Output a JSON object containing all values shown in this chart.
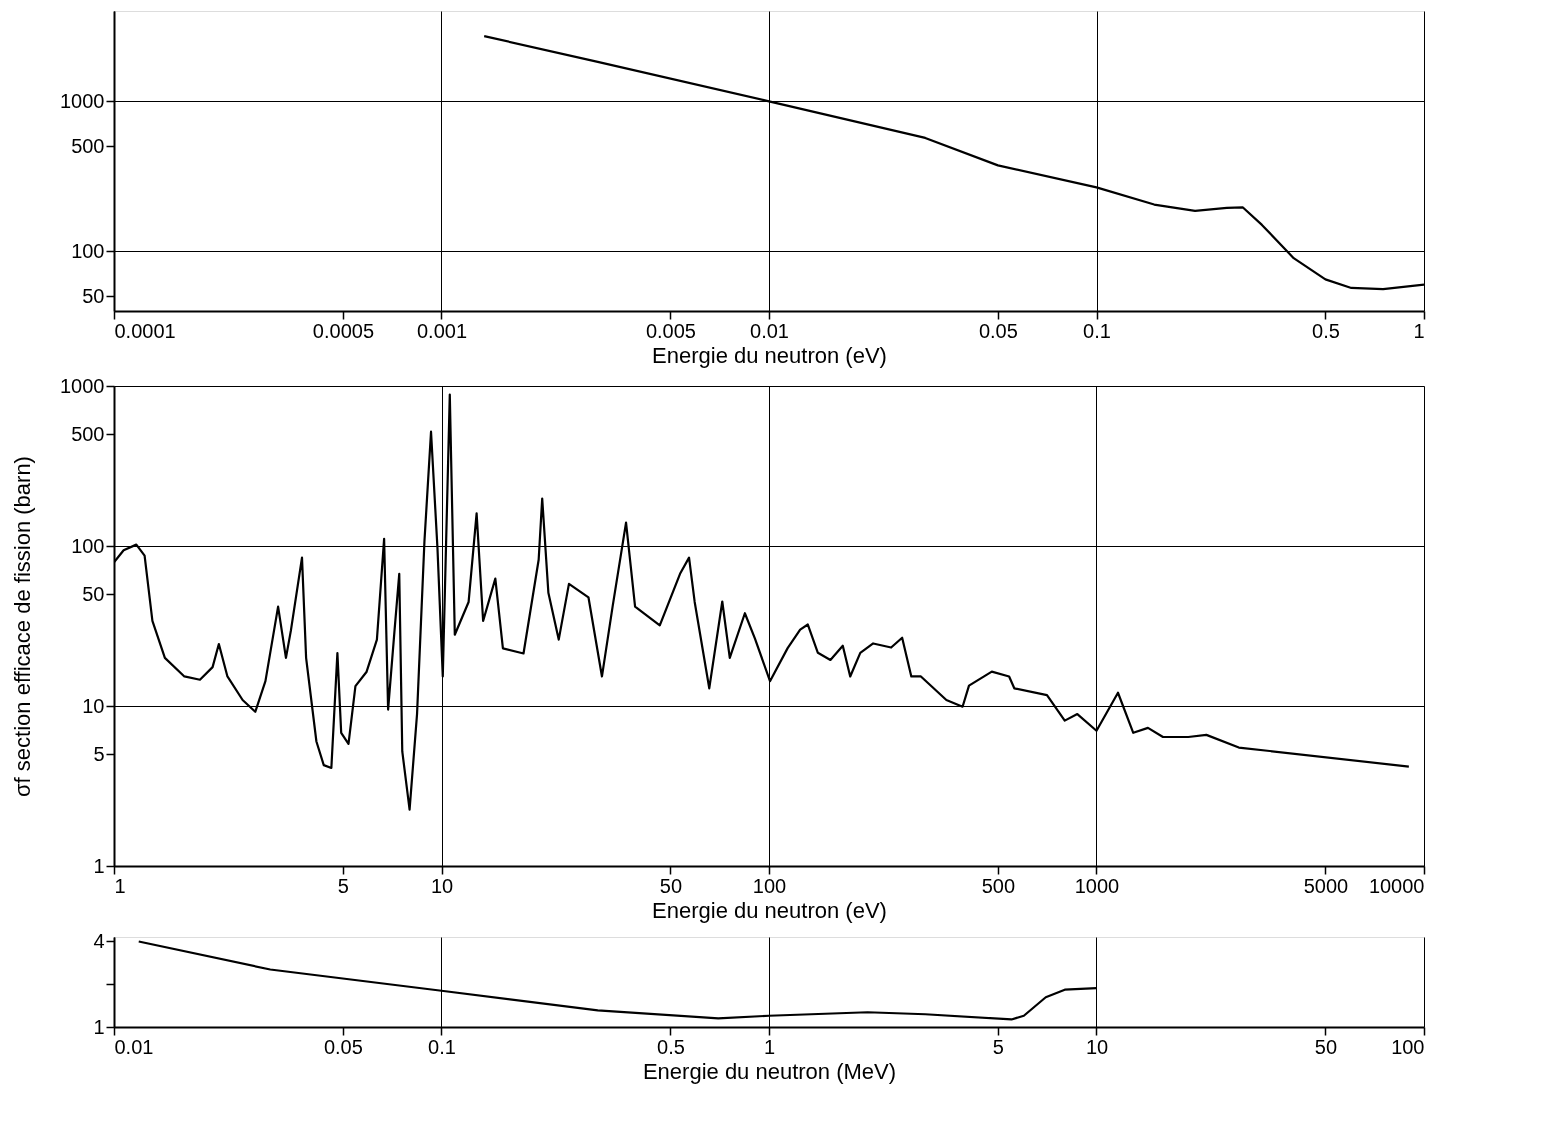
{
  "chart_data": [
    {
      "type": "line",
      "xlabel": "Energie du neutron (eV)",
      "log": "xy",
      "grid": true,
      "xlim": [
        0.0001,
        1
      ],
      "ylim": [
        40,
        4000
      ],
      "xticks": [
        0.0001,
        0.0005,
        0.001,
        0.005,
        0.01,
        0.05,
        0.1,
        0.5,
        1
      ],
      "yticks": [
        50,
        100,
        500,
        1000
      ],
      "series": [
        {
          "color": "#000000",
          "x": [
            0.00135,
            0.003,
            0.01,
            0.03,
            0.05,
            0.1,
            0.15,
            0.2,
            0.25,
            0.28,
            0.32,
            0.4,
            0.5,
            0.6,
            0.75,
            1
          ],
          "values": [
            2720,
            1830,
            1000,
            570,
            374,
            267,
            205,
            186,
            195,
            196,
            150,
            90,
            65,
            57,
            56,
            60
          ]
        }
      ]
    },
    {
      "type": "line",
      "xlabel": "Energie du neutron (eV)",
      "ylabel": "σf section efficace de fission (barn)",
      "log": "xy",
      "grid": true,
      "xlim": [
        1,
        10000
      ],
      "ylim": [
        1,
        1000
      ],
      "xticks": [
        1,
        5,
        10,
        50,
        100,
        500,
        1000,
        5000,
        10000
      ],
      "yticks": [
        1,
        5,
        10,
        50,
        100,
        500,
        1000
      ],
      "series": [
        {
          "color": "#000000",
          "x": [
            1,
            1.07,
            1.17,
            1.24,
            1.31,
            1.43,
            1.64,
            1.83,
            2.0,
            2.09,
            2.22,
            2.47,
            2.7,
            2.9,
            3.17,
            3.35,
            3.47,
            3.75,
            3.86,
            4.15,
            4.37,
            4.61,
            4.81,
            4.94,
            5.2,
            5.46,
            5.9,
            6.35,
            6.68,
            6.87,
            7.19,
            7.43,
            7.59,
            7.99,
            8.42,
            8.87,
            9.29,
            9.72,
            10.09,
            10.6,
            10.98,
            12.1,
            12.8,
            13.4,
            14.6,
            15.4,
            17.8,
            19.8,
            20.3,
            21.2,
            22.8,
            24.5,
            28.1,
            30.9,
            33.3,
            36.6,
            39,
            46.4,
            53.5,
            57,
            59.3,
            65.7,
            72,
            75.9,
            84.4,
            90.6,
            100.7,
            114,
            124.5,
            131.4,
            141,
            154,
            168,
            177,
            190,
            208,
            236,
            255,
            272,
            291,
            348,
            390,
            408,
            479,
            541,
            561,
            706,
            800,
            874,
            1000,
            1163,
            1295,
            1436,
            1596,
            1906,
            2165,
            2720,
            8990
          ],
          "values": [
            79,
            94,
            102,
            87,
            34,
            20,
            15.3,
            14.6,
            17.5,
            24.4,
            15.3,
            10.9,
            9.2,
            14.3,
            41.8,
            20,
            29.8,
            84.6,
            20,
            6.0,
            4.27,
            4.1,
            21.4,
            6.8,
            5.8,
            13.3,
            16.3,
            26,
            111,
            9.5,
            29.9,
            67,
            5.2,
            2.25,
            8.9,
            107,
            518,
            97,
            15.3,
            885,
            27.9,
            44.7,
            160,
            34,
            62.5,
            22.9,
            21.3,
            82,
            198,
            51,
            26,
            58,
            47.8,
            15.3,
            41.8,
            140,
            41.8,
            31.9,
            67,
            84.6,
            44.7,
            12.9,
            45,
            20,
            38,
            26.4,
            14.3,
            23,
            30,
            32.3,
            21.5,
            19.4,
            23.8,
            15.3,
            21.5,
            24.6,
            23.2,
            26.7,
            15.3,
            15.3,
            10.9,
            9.9,
            13.4,
            16.4,
            15.3,
            12.9,
            11.7,
            8.1,
            8.9,
            7.0,
            12.1,
            6.8,
            7.3,
            6.4,
            6.4,
            6.6,
            5.5,
            4.18
          ]
        }
      ]
    },
    {
      "type": "line",
      "xlabel": "Energie du neutron (MeV)",
      "log": "xy",
      "grid": "x",
      "xlim": [
        0.01,
        100
      ],
      "ylim": [
        1,
        4.3
      ],
      "xticks": [
        0.01,
        0.05,
        0.1,
        0.5,
        1,
        5,
        10,
        50,
        100
      ],
      "yticks": [
        1,
        {
          "value": 2,
          "label": null
        },
        4
      ],
      "series": [
        {
          "color": "#000000",
          "x": [
            0.0119,
            0.03,
            0.1,
            0.3,
            0.7,
            1,
            2,
            3,
            5.5,
            6,
            7,
            8,
            10
          ],
          "values": [
            4.0,
            2.54,
            1.8,
            1.31,
            1.15,
            1.2,
            1.27,
            1.23,
            1.13,
            1.2,
            1.62,
            1.83,
            1.88
          ]
        }
      ]
    }
  ]
}
